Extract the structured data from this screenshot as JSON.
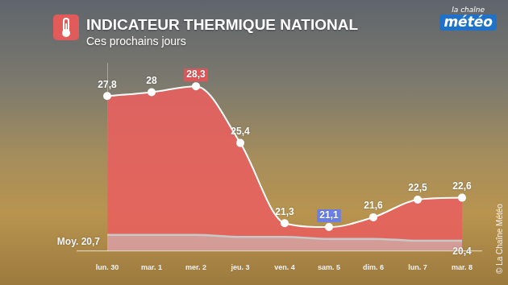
{
  "logo": [
    "la chaîne",
    "météo"
  ],
  "credit": "© La Chaîne Météo",
  "chart_data": {
    "type": "line",
    "title": "INDICATEUR THERMIQUE NATIONAL",
    "subtitle": "Ces prochains jours",
    "categories": [
      "lun. 30",
      "mar. 1",
      "mer. 2",
      "jeu. 3",
      "ven. 4",
      "sam. 5",
      "dim. 6",
      "lun. 7",
      "mar. 8"
    ],
    "series": [
      {
        "color": "#e8605f",
        "values": [
          27.8,
          28,
          28.3,
          25.4,
          21.3,
          21.1,
          21.6,
          22.5,
          22.6
        ],
        "value_labels": [
          "27,8",
          "28",
          "28,3",
          "25,4",
          "21,3",
          "21,1",
          "21,6",
          "22,5",
          "22,6"
        ]
      },
      {
        "color": "#c8c8c8",
        "values": [
          20.7,
          20.7,
          20.7,
          20.6,
          20.6,
          20.5,
          20.5,
          20.4,
          20.4
        ],
        "value_labels": [
          "Moy. 20,7",
          null,
          null,
          null,
          null,
          null,
          null,
          null,
          "20,4"
        ]
      }
    ],
    "ylim": [
      19.9,
      29.5
    ],
    "tick_labels": "x",
    "grid": false,
    "data_labels": true
  }
}
